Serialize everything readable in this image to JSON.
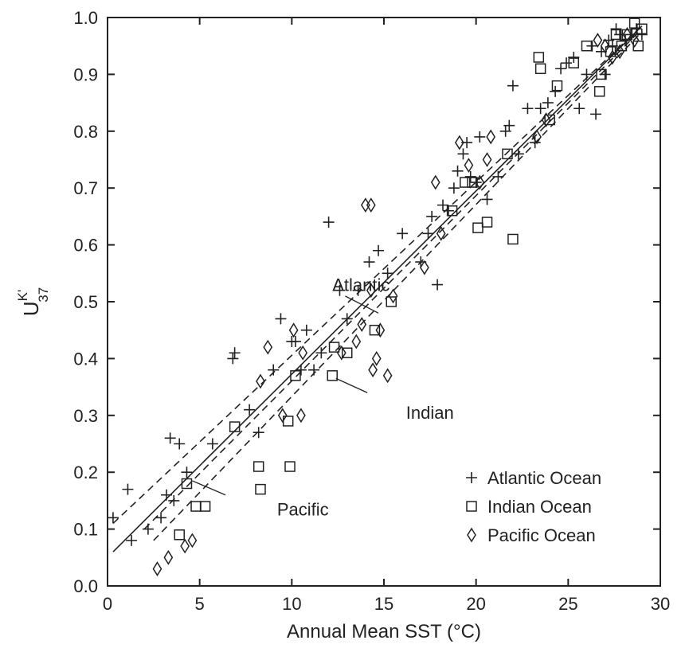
{
  "chart_data": {
    "type": "scatter",
    "xlabel": "Annual Mean SST (°C)",
    "ylabel": {
      "base": "U",
      "superscript": "K'",
      "subscript": "37"
    },
    "xlim": [
      0,
      30
    ],
    "ylim": [
      0.0,
      1.0
    ],
    "xticks": [
      "0",
      "5",
      "10",
      "15",
      "20",
      "25",
      "30"
    ],
    "yticks": [
      "0.0",
      "0.1",
      "0.2",
      "0.3",
      "0.4",
      "0.5",
      "0.6",
      "0.7",
      "0.8",
      "0.9",
      "1.0"
    ],
    "grid": false,
    "legend_position": "bottom-right",
    "legend": [
      {
        "name": "Atlantic Ocean",
        "marker": "plus"
      },
      {
        "name": "Indian Ocean",
        "marker": "square"
      },
      {
        "name": "Pacific Ocean",
        "marker": "diamond"
      }
    ],
    "series": [
      {
        "name": "Atlantic Ocean",
        "marker": "plus",
        "points": [
          [
            0.3,
            0.12
          ],
          [
            1.1,
            0.17
          ],
          [
            1.3,
            0.08
          ],
          [
            2.2,
            0.1
          ],
          [
            2.9,
            0.12
          ],
          [
            3.2,
            0.16
          ],
          [
            3.4,
            0.26
          ],
          [
            3.6,
            0.15
          ],
          [
            3.9,
            0.25
          ],
          [
            4.3,
            0.2
          ],
          [
            5.7,
            0.25
          ],
          [
            6.8,
            0.4
          ],
          [
            6.9,
            0.41
          ],
          [
            7.7,
            0.31
          ],
          [
            8.2,
            0.27
          ],
          [
            9.0,
            0.38
          ],
          [
            9.4,
            0.47
          ],
          [
            10.0,
            0.43
          ],
          [
            10.2,
            0.43
          ],
          [
            10.5,
            0.38
          ],
          [
            10.8,
            0.45
          ],
          [
            11.2,
            0.38
          ],
          [
            11.6,
            0.41
          ],
          [
            12.0,
            0.64
          ],
          [
            12.6,
            0.52
          ],
          [
            13.0,
            0.47
          ],
          [
            13.6,
            0.52
          ],
          [
            14.2,
            0.57
          ],
          [
            14.7,
            0.59
          ],
          [
            15.2,
            0.55
          ],
          [
            16.0,
            0.62
          ],
          [
            17.0,
            0.57
          ],
          [
            17.4,
            0.62
          ],
          [
            17.6,
            0.65
          ],
          [
            17.9,
            0.53
          ],
          [
            18.2,
            0.67
          ],
          [
            18.5,
            0.66
          ],
          [
            18.8,
            0.7
          ],
          [
            19.0,
            0.73
          ],
          [
            19.3,
            0.76
          ],
          [
            19.5,
            0.78
          ],
          [
            19.7,
            0.72
          ],
          [
            20.0,
            0.71
          ],
          [
            20.2,
            0.79
          ],
          [
            20.6,
            0.68
          ],
          [
            21.2,
            0.72
          ],
          [
            21.6,
            0.8
          ],
          [
            21.8,
            0.81
          ],
          [
            22.0,
            0.88
          ],
          [
            22.3,
            0.76
          ],
          [
            22.8,
            0.84
          ],
          [
            23.2,
            0.78
          ],
          [
            23.5,
            0.84
          ],
          [
            23.9,
            0.85
          ],
          [
            24.3,
            0.87
          ],
          [
            24.6,
            0.91
          ],
          [
            24.9,
            0.92
          ],
          [
            25.3,
            0.93
          ],
          [
            25.6,
            0.84
          ],
          [
            26.0,
            0.9
          ],
          [
            26.3,
            0.95
          ],
          [
            26.5,
            0.83
          ],
          [
            26.8,
            0.94
          ],
          [
            27.0,
            0.9
          ],
          [
            27.2,
            0.96
          ],
          [
            27.4,
            0.95
          ],
          [
            27.6,
            0.98
          ],
          [
            27.8,
            0.97
          ],
          [
            28.1,
            0.96
          ],
          [
            28.4,
            0.97
          ],
          [
            28.7,
            0.98
          ],
          [
            29.0,
            0.97
          ]
        ]
      },
      {
        "name": "Indian Ocean",
        "marker": "square",
        "points": [
          [
            3.9,
            0.09
          ],
          [
            4.3,
            0.18
          ],
          [
            4.8,
            0.14
          ],
          [
            5.3,
            0.14
          ],
          [
            6.9,
            0.28
          ],
          [
            8.2,
            0.21
          ],
          [
            8.3,
            0.17
          ],
          [
            9.8,
            0.29
          ],
          [
            9.9,
            0.21
          ],
          [
            10.2,
            0.37
          ],
          [
            12.2,
            0.37
          ],
          [
            12.3,
            0.42
          ],
          [
            13.0,
            0.41
          ],
          [
            14.5,
            0.45
          ],
          [
            15.4,
            0.5
          ],
          [
            18.7,
            0.66
          ],
          [
            19.4,
            0.71
          ],
          [
            19.8,
            0.71
          ],
          [
            20.1,
            0.63
          ],
          [
            20.6,
            0.64
          ],
          [
            21.7,
            0.76
          ],
          [
            22.0,
            0.61
          ],
          [
            23.4,
            0.93
          ],
          [
            23.5,
            0.91
          ],
          [
            24.0,
            0.82
          ],
          [
            24.4,
            0.88
          ],
          [
            25.3,
            0.92
          ],
          [
            26.0,
            0.95
          ],
          [
            26.7,
            0.87
          ],
          [
            26.8,
            0.9
          ],
          [
            27.3,
            0.94
          ],
          [
            27.6,
            0.97
          ],
          [
            27.9,
            0.95
          ],
          [
            28.2,
            0.97
          ],
          [
            28.6,
            0.99
          ],
          [
            28.8,
            0.95
          ],
          [
            29.0,
            0.98
          ]
        ]
      },
      {
        "name": "Pacific Ocean",
        "marker": "diamond",
        "points": [
          [
            2.7,
            0.03
          ],
          [
            3.3,
            0.05
          ],
          [
            4.2,
            0.07
          ],
          [
            4.6,
            0.08
          ],
          [
            8.3,
            0.36
          ],
          [
            8.7,
            0.42
          ],
          [
            9.5,
            0.3
          ],
          [
            10.1,
            0.45
          ],
          [
            10.5,
            0.3
          ],
          [
            10.6,
            0.41
          ],
          [
            12.7,
            0.41
          ],
          [
            13.5,
            0.43
          ],
          [
            13.8,
            0.46
          ],
          [
            14.0,
            0.67
          ],
          [
            14.3,
            0.67
          ],
          [
            14.3,
            0.52
          ],
          [
            14.4,
            0.38
          ],
          [
            14.6,
            0.4
          ],
          [
            14.8,
            0.45
          ],
          [
            15.2,
            0.37
          ],
          [
            15.5,
            0.51
          ],
          [
            17.2,
            0.56
          ],
          [
            17.8,
            0.71
          ],
          [
            18.1,
            0.62
          ],
          [
            19.1,
            0.78
          ],
          [
            19.6,
            0.74
          ],
          [
            20.2,
            0.71
          ],
          [
            20.6,
            0.75
          ],
          [
            20.8,
            0.79
          ],
          [
            23.3,
            0.79
          ],
          [
            23.8,
            0.82
          ],
          [
            26.6,
            0.96
          ],
          [
            27.0,
            0.95
          ],
          [
            27.4,
            0.93
          ],
          [
            27.8,
            0.94
          ],
          [
            28.2,
            0.97
          ],
          [
            28.6,
            0.96
          ]
        ]
      }
    ],
    "lines": [
      {
        "name": "Atlantic",
        "style": "dashed",
        "points": [
          [
            0.3,
            0.11
          ],
          [
            29.0,
            0.985
          ]
        ]
      },
      {
        "name": "Overall fit",
        "style": "solid",
        "points": [
          [
            0.3,
            0.06
          ],
          [
            29.0,
            0.985
          ]
        ]
      },
      {
        "name": "Indian",
        "style": "dashed",
        "points": [
          [
            2.0,
            0.1
          ],
          [
            29.0,
            0.98
          ]
        ]
      },
      {
        "name": "Pacific",
        "style": "dashed",
        "points": [
          [
            2.5,
            0.08
          ],
          [
            29.0,
            0.975
          ]
        ]
      }
    ],
    "annotations": [
      {
        "text": "Atlantic",
        "label_at": [
          12.2,
          0.53
        ],
        "pointer_from": [
          12.9,
          0.51
        ],
        "pointer_to": [
          14.7,
          0.48
        ]
      },
      {
        "text": "Indian",
        "label_at": [
          16.2,
          0.305
        ],
        "pointer_from": [
          14.1,
          0.34
        ],
        "pointer_to": [
          12.4,
          0.365
        ]
      },
      {
        "text": "Pacific",
        "label_at": [
          9.2,
          0.135
        ],
        "pointer_from": [
          6.4,
          0.16
        ],
        "pointer_to": [
          4.6,
          0.185
        ]
      }
    ]
  }
}
